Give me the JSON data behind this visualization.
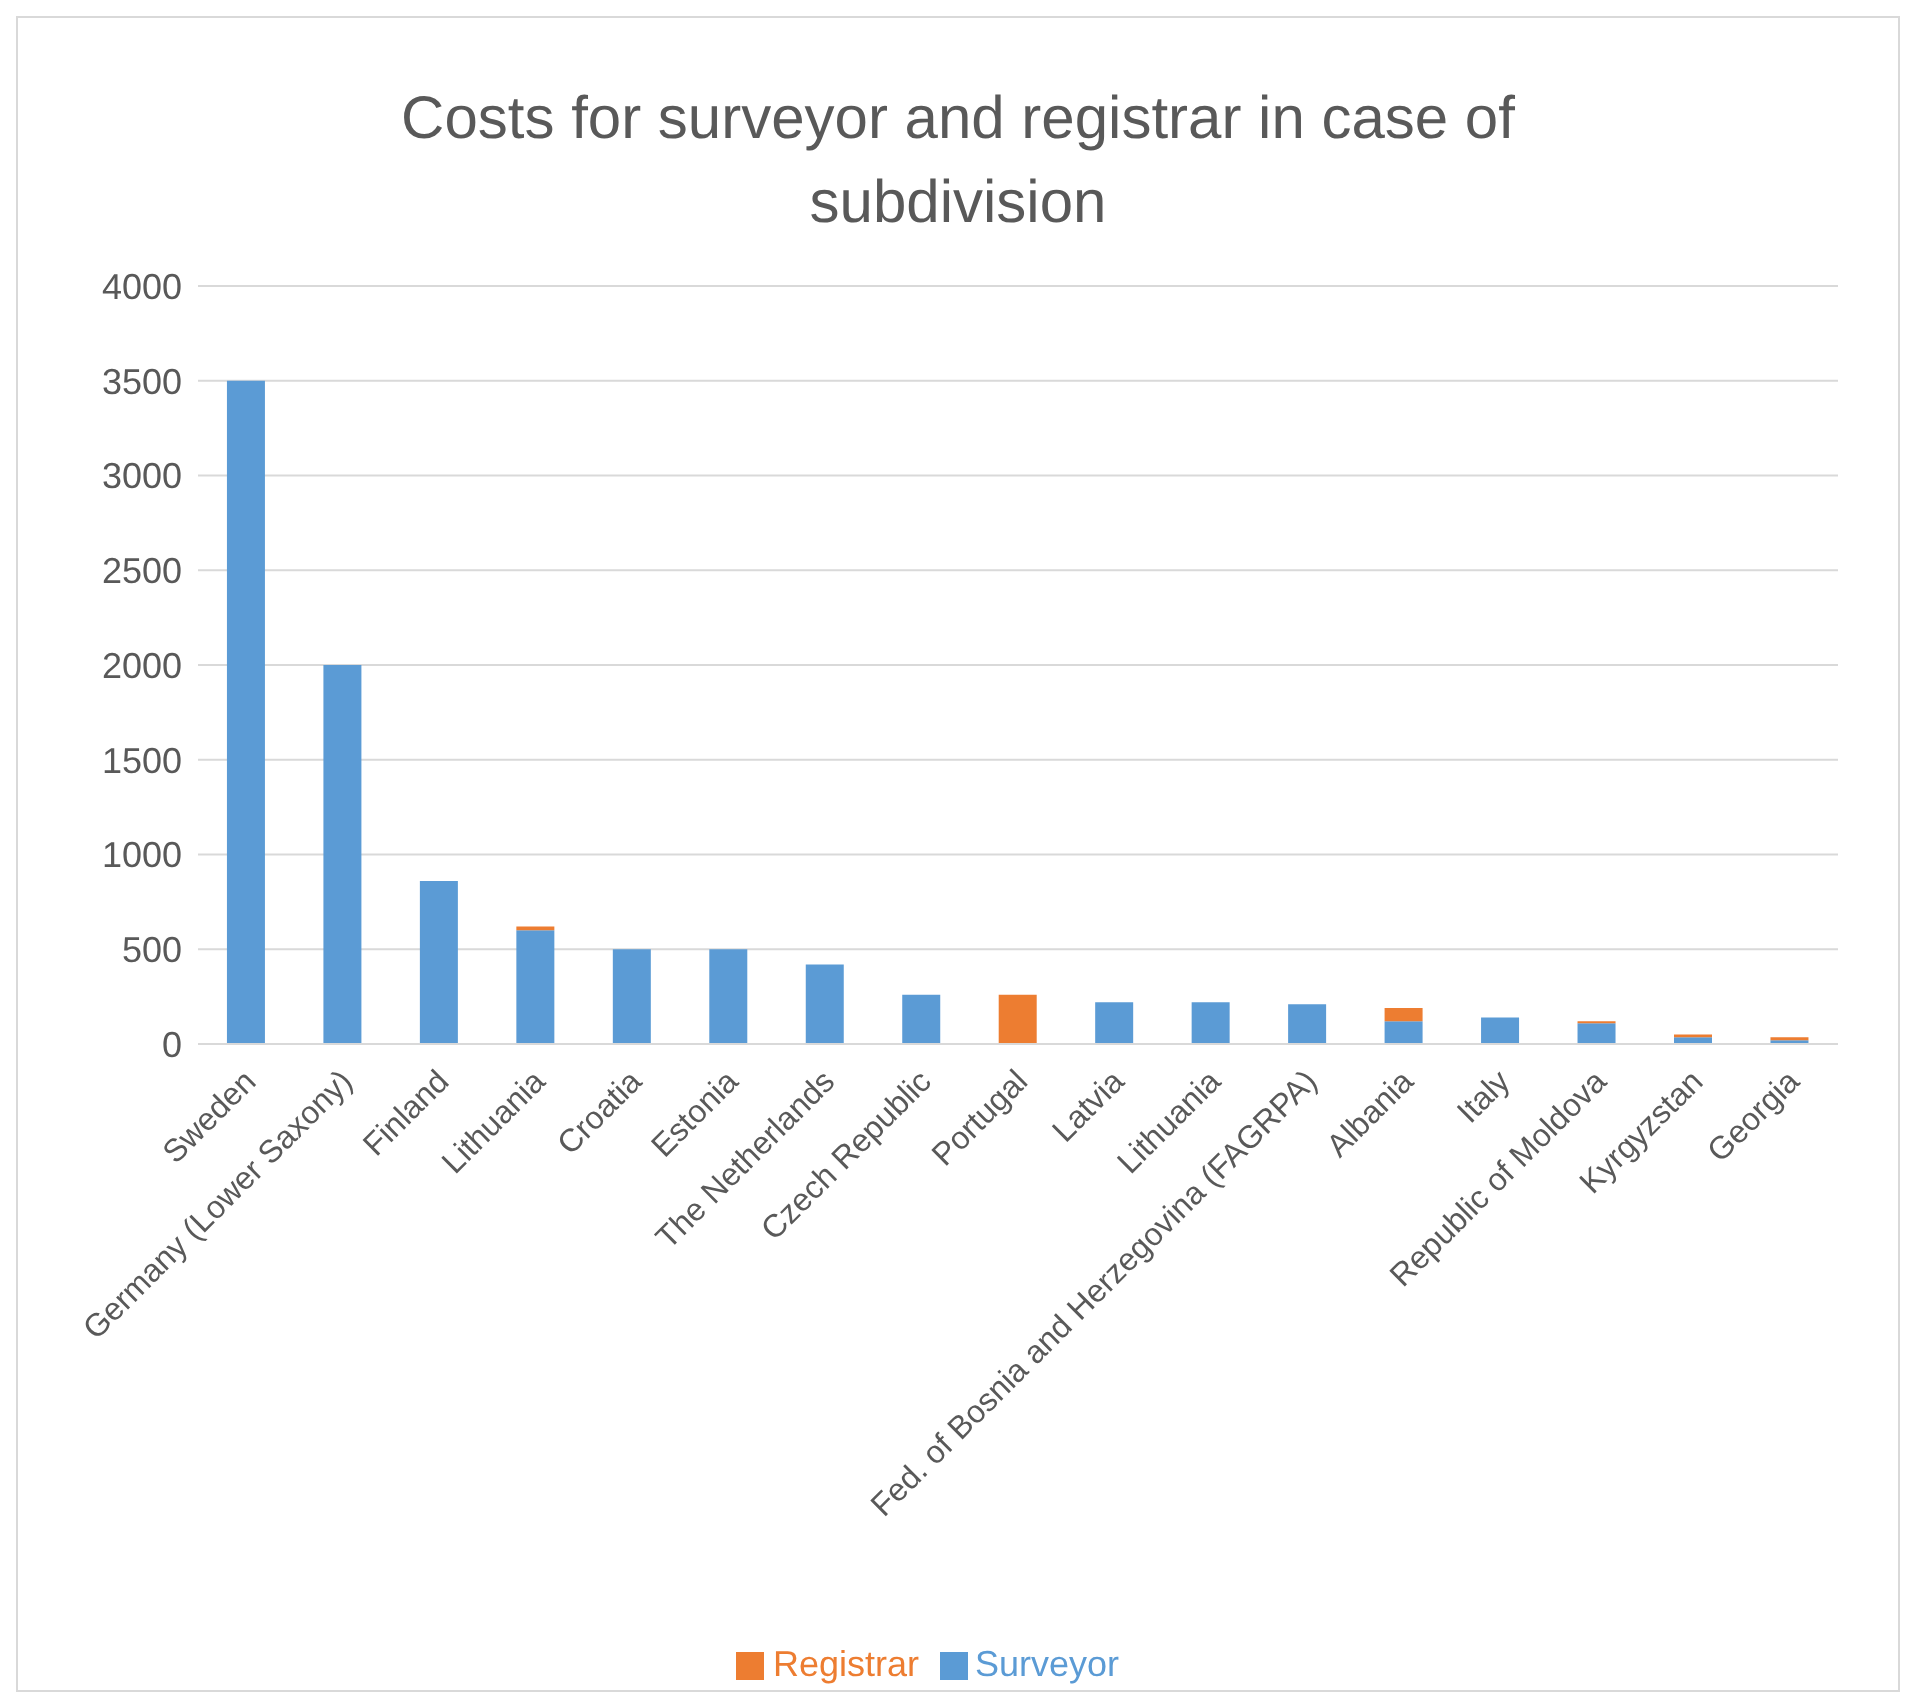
{
  "chart_data": {
    "type": "bar",
    "title": "Costs for surveyor and registrar in case of subdivision",
    "categories": [
      "Sweden",
      "Germany (Lower Saxony)",
      "Finland",
      "Lithuania",
      "Croatia",
      "Estonia",
      "The Netherlands",
      "Czech Republic",
      "Portugal",
      "Latvia",
      "Lithuania",
      "Fed. of Bosnia and Herzegovina (FAGRPA)",
      "Albania",
      "Italy",
      "Republic of Moldova",
      "Kyrgyzstan",
      "Georgia"
    ],
    "series": [
      {
        "name": "Surveyor",
        "color": "#5b9bd5",
        "values": [
          3500,
          2000,
          860,
          600,
          500,
          500,
          420,
          260,
          0,
          220,
          220,
          210,
          120,
          140,
          110,
          35,
          20
        ]
      },
      {
        "name": "Registrar",
        "color": "#ed7d31",
        "values": [
          0,
          0,
          0,
          20,
          0,
          0,
          0,
          0,
          260,
          0,
          0,
          0,
          70,
          0,
          10,
          15,
          15
        ]
      }
    ],
    "stacked": true,
    "ylim": [
      0,
      4000
    ],
    "yticks": [
      0,
      500,
      1000,
      1500,
      2000,
      2500,
      3000,
      3500,
      4000
    ],
    "grid": "y",
    "legend": "bottom"
  }
}
